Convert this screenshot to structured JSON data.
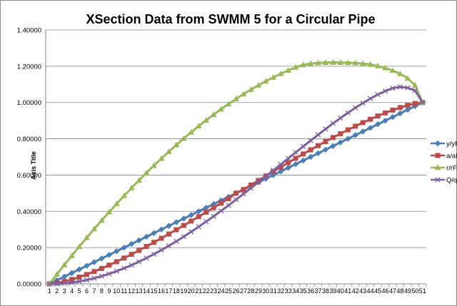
{
  "chart_data": {
    "type": "line",
    "title": "XSection Data from SWMM 5 for a Circular Pipe",
    "xlabel": "",
    "ylabel": "Axis Title",
    "categories": [
      "1",
      "2",
      "3",
      "4",
      "5",
      "6",
      "7",
      "8",
      "9",
      "10",
      "11",
      "12",
      "13",
      "14",
      "15",
      "16",
      "17",
      "18",
      "19",
      "20",
      "21",
      "22",
      "23",
      "24",
      "25",
      "26",
      "27",
      "28",
      "29",
      "30",
      "31",
      "32",
      "33",
      "34",
      "35",
      "36",
      "37",
      "38",
      "39",
      "40",
      "41",
      "42",
      "43",
      "44",
      "45",
      "46",
      "47",
      "48",
      "49",
      "50",
      "51"
    ],
    "y_ticks": [
      "0.00000",
      "0.20000",
      "0.40000",
      "0.60000",
      "0.80000",
      "1.00000",
      "1.20000",
      "1.40000"
    ],
    "ylim": [
      0,
      1.4
    ],
    "grid": "horizontal",
    "legend_position": "right",
    "series": [
      {
        "name": "y/yFull",
        "color": "#4a7ebb",
        "marker": "diamond",
        "values": [
          0,
          0.02,
          0.04,
          0.06,
          0.08,
          0.1,
          0.12,
          0.14,
          0.16,
          0.18,
          0.2,
          0.22,
          0.24,
          0.26,
          0.28,
          0.3,
          0.32,
          0.34,
          0.36,
          0.38,
          0.4,
          0.42,
          0.44,
          0.46,
          0.48,
          0.5,
          0.52,
          0.54,
          0.56,
          0.58,
          0.6,
          0.62,
          0.64,
          0.66,
          0.68,
          0.7,
          0.72,
          0.74,
          0.76,
          0.78,
          0.8,
          0.82,
          0.84,
          0.86,
          0.88,
          0.9,
          0.92,
          0.94,
          0.96,
          0.98,
          1.0
        ]
      },
      {
        "name": "a/aFull",
        "color": "#be4b48",
        "marker": "square",
        "values": [
          0,
          0.0048,
          0.0134,
          0.0245,
          0.0375,
          0.052,
          0.0681,
          0.0851,
          0.1033,
          0.1224,
          0.1424,
          0.163,
          0.1845,
          0.2064,
          0.2288,
          0.2516,
          0.2749,
          0.2985,
          0.3224,
          0.3464,
          0.3708,
          0.3953,
          0.4199,
          0.4448,
          0.4699,
          0.5,
          0.5201,
          0.5452,
          0.5701,
          0.595,
          0.6197,
          0.6441,
          0.6683,
          0.6923,
          0.7161,
          0.7392,
          0.7623,
          0.7846,
          0.8068,
          0.8282,
          0.8492,
          0.8694,
          0.889,
          0.9077,
          0.9256,
          0.9425,
          0.958,
          0.9721,
          0.9845,
          0.9947,
          1.0
        ]
      },
      {
        "name": "r/rFull",
        "color": "#98b954",
        "marker": "triangle",
        "values": [
          0,
          0.0528,
          0.1047,
          0.1556,
          0.2057,
          0.2548,
          0.3029,
          0.3501,
          0.3963,
          0.4415,
          0.4858,
          0.5289,
          0.5711,
          0.6122,
          0.6523,
          0.6913,
          0.7292,
          0.7661,
          0.8018,
          0.8364,
          0.8699,
          0.9022,
          0.9334,
          0.9634,
          0.9922,
          1.0197,
          1.0461,
          1.0712,
          1.095,
          1.1175,
          1.1387,
          1.1585,
          1.1769,
          1.1939,
          1.2074,
          1.2146,
          1.2185,
          1.2203,
          1.221,
          1.2204,
          1.2195,
          1.2178,
          1.2147,
          1.2096,
          1.2017,
          1.1906,
          1.1764,
          1.1581,
          1.1332,
          1.0945,
          1.0
        ]
      },
      {
        "name": "Q/qFull",
        "color": "#7d60a0",
        "marker": "x",
        "values": [
          0,
          0.0007,
          0.0031,
          0.0074,
          0.0136,
          0.0215,
          0.0312,
          0.0426,
          0.0556,
          0.0701,
          0.0861,
          0.1035,
          0.1223,
          0.1424,
          0.1638,
          0.1863,
          0.21,
          0.2348,
          0.2605,
          0.2873,
          0.3149,
          0.3434,
          0.3726,
          0.4025,
          0.4331,
          0.4643,
          0.4959,
          0.528,
          0.5604,
          0.5931,
          0.626,
          0.659,
          0.692,
          0.725,
          0.7577,
          0.7902,
          0.8222,
          0.8537,
          0.8845,
          0.9144,
          0.9432,
          0.9708,
          0.997,
          1.0214,
          1.0437,
          1.0632,
          1.0788,
          1.0864,
          1.0812,
          1.0657,
          1.0
        ]
      }
    ]
  }
}
